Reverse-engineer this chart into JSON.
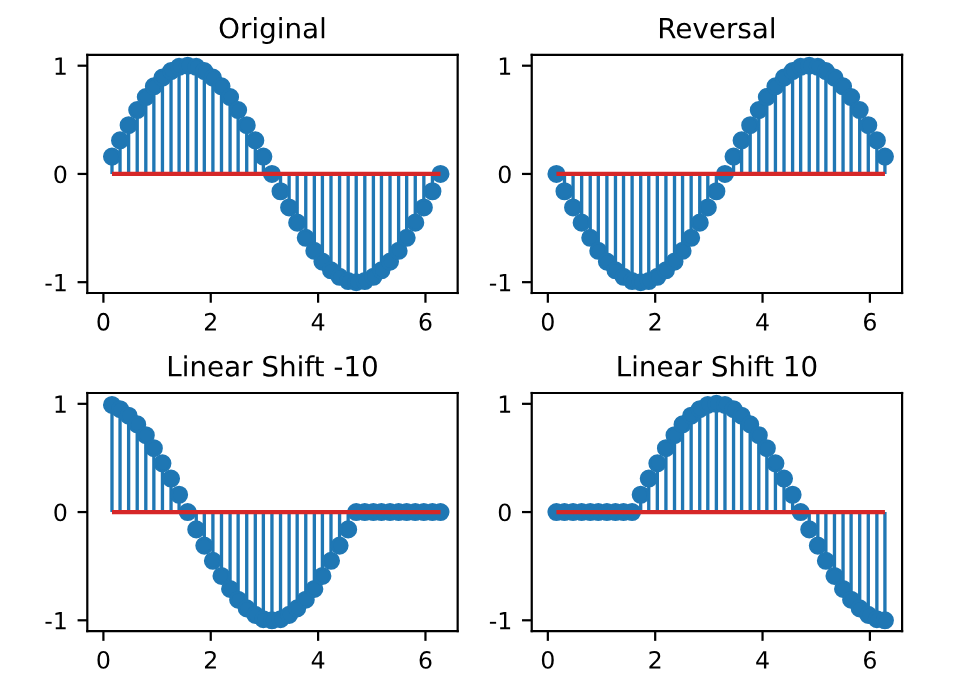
{
  "chart_data": [
    {
      "type": "lollipop",
      "title": "Original",
      "x": [
        0.16,
        0.31,
        0.47,
        0.63,
        0.79,
        0.94,
        1.1,
        1.26,
        1.41,
        1.57,
        1.73,
        1.88,
        2.04,
        2.2,
        2.36,
        2.51,
        2.67,
        2.83,
        2.98,
        3.14,
        3.3,
        3.46,
        3.61,
        3.77,
        3.93,
        4.08,
        4.24,
        4.4,
        4.56,
        4.71,
        4.87,
        5.03,
        5.18,
        5.34,
        5.5,
        5.65,
        5.81,
        5.97,
        6.13,
        6.28
      ],
      "series": [
        {
          "color": "#1f77b4",
          "values": [
            0.16,
            0.31,
            0.45,
            0.59,
            0.71,
            0.81,
            0.89,
            0.95,
            0.99,
            1,
            0.99,
            0.95,
            0.89,
            0.81,
            0.71,
            0.59,
            0.45,
            0.31,
            0.16,
            0,
            -0.16,
            -0.31,
            -0.45,
            -0.59,
            -0.71,
            -0.81,
            -0.89,
            -0.95,
            -0.99,
            -1,
            -0.99,
            -0.95,
            -0.89,
            -0.81,
            -0.71,
            -0.59,
            -0.45,
            -0.31,
            -0.16,
            0
          ]
        }
      ],
      "ref_lines": [
        {
          "axis": "y",
          "value": 0,
          "color": "#d62728"
        }
      ],
      "marker": "circle",
      "xlim": [
        -0.3,
        6.6
      ],
      "ylim": [
        -1.1,
        1.1
      ],
      "xticks": [
        0,
        2,
        4,
        6
      ],
      "yticks": [
        -1,
        0,
        1
      ],
      "grid": false,
      "legend": false
    },
    {
      "type": "lollipop",
      "title": "Reversal",
      "x": [
        0.16,
        0.31,
        0.47,
        0.63,
        0.79,
        0.94,
        1.1,
        1.26,
        1.41,
        1.57,
        1.73,
        1.88,
        2.04,
        2.2,
        2.36,
        2.51,
        2.67,
        2.83,
        2.98,
        3.14,
        3.3,
        3.46,
        3.61,
        3.77,
        3.93,
        4.08,
        4.24,
        4.4,
        4.56,
        4.71,
        4.87,
        5.03,
        5.18,
        5.34,
        5.5,
        5.65,
        5.81,
        5.97,
        6.13,
        6.28
      ],
      "series": [
        {
          "color": "#1f77b4",
          "values": [
            0,
            -0.16,
            -0.31,
            -0.45,
            -0.59,
            -0.71,
            -0.81,
            -0.89,
            -0.95,
            -0.99,
            -1,
            -0.99,
            -0.95,
            -0.89,
            -0.81,
            -0.71,
            -0.59,
            -0.45,
            -0.31,
            -0.16,
            0,
            0.16,
            0.31,
            0.45,
            0.59,
            0.71,
            0.81,
            0.89,
            0.95,
            0.99,
            1,
            0.99,
            0.95,
            0.89,
            0.81,
            0.71,
            0.59,
            0.45,
            0.31,
            0.16
          ]
        }
      ],
      "ref_lines": [
        {
          "axis": "y",
          "value": 0,
          "color": "#d62728"
        }
      ],
      "marker": "circle",
      "xlim": [
        -0.3,
        6.6
      ],
      "ylim": [
        -1.1,
        1.1
      ],
      "xticks": [
        0,
        2,
        4,
        6
      ],
      "yticks": [
        -1,
        0,
        1
      ],
      "grid": false,
      "legend": false
    },
    {
      "type": "lollipop",
      "title": "Linear Shift -10",
      "x": [
        0.16,
        0.31,
        0.47,
        0.63,
        0.79,
        0.94,
        1.1,
        1.26,
        1.41,
        1.57,
        1.73,
        1.88,
        2.04,
        2.2,
        2.36,
        2.51,
        2.67,
        2.83,
        2.98,
        3.14,
        3.3,
        3.46,
        3.61,
        3.77,
        3.93,
        4.08,
        4.24,
        4.4,
        4.56,
        4.71,
        4.87,
        5.03,
        5.18,
        5.34,
        5.5,
        5.65,
        5.81,
        5.97,
        6.13,
        6.28
      ],
      "series": [
        {
          "color": "#1f77b4",
          "values": [
            0.99,
            0.95,
            0.89,
            0.81,
            0.71,
            0.59,
            0.45,
            0.31,
            0.16,
            0,
            -0.16,
            -0.31,
            -0.45,
            -0.59,
            -0.71,
            -0.81,
            -0.89,
            -0.95,
            -0.99,
            -1,
            -0.99,
            -0.95,
            -0.89,
            -0.81,
            -0.71,
            -0.59,
            -0.45,
            -0.31,
            -0.16,
            0,
            0,
            0,
            0,
            0,
            0,
            0,
            0,
            0,
            0,
            0
          ]
        }
      ],
      "ref_lines": [
        {
          "axis": "y",
          "value": 0,
          "color": "#d62728"
        }
      ],
      "marker": "circle",
      "xlim": [
        -0.3,
        6.6
      ],
      "ylim": [
        -1.1,
        1.1
      ],
      "xticks": [
        0,
        2,
        4,
        6
      ],
      "yticks": [
        -1,
        0,
        1
      ],
      "grid": false,
      "legend": false
    },
    {
      "type": "lollipop",
      "title": "Linear Shift 10",
      "x": [
        0.16,
        0.31,
        0.47,
        0.63,
        0.79,
        0.94,
        1.1,
        1.26,
        1.41,
        1.57,
        1.73,
        1.88,
        2.04,
        2.2,
        2.36,
        2.51,
        2.67,
        2.83,
        2.98,
        3.14,
        3.3,
        3.46,
        3.61,
        3.77,
        3.93,
        4.08,
        4.24,
        4.4,
        4.56,
        4.71,
        4.87,
        5.03,
        5.18,
        5.34,
        5.5,
        5.65,
        5.81,
        5.97,
        6.13,
        6.28
      ],
      "series": [
        {
          "color": "#1f77b4",
          "values": [
            0,
            0,
            0,
            0,
            0,
            0,
            0,
            0,
            0,
            0,
            0.16,
            0.31,
            0.45,
            0.59,
            0.71,
            0.81,
            0.89,
            0.95,
            0.99,
            1,
            0.99,
            0.95,
            0.89,
            0.81,
            0.71,
            0.59,
            0.45,
            0.31,
            0.16,
            0,
            -0.16,
            -0.31,
            -0.45,
            -0.59,
            -0.71,
            -0.81,
            -0.89,
            -0.95,
            -0.99,
            -1
          ]
        }
      ],
      "ref_lines": [
        {
          "axis": "y",
          "value": 0,
          "color": "#d62728"
        }
      ],
      "marker": "circle",
      "xlim": [
        -0.3,
        6.6
      ],
      "ylim": [
        -1.1,
        1.1
      ],
      "xticks": [
        0,
        2,
        4,
        6
      ],
      "yticks": [
        -1,
        0,
        1
      ],
      "grid": false,
      "legend": false
    }
  ]
}
